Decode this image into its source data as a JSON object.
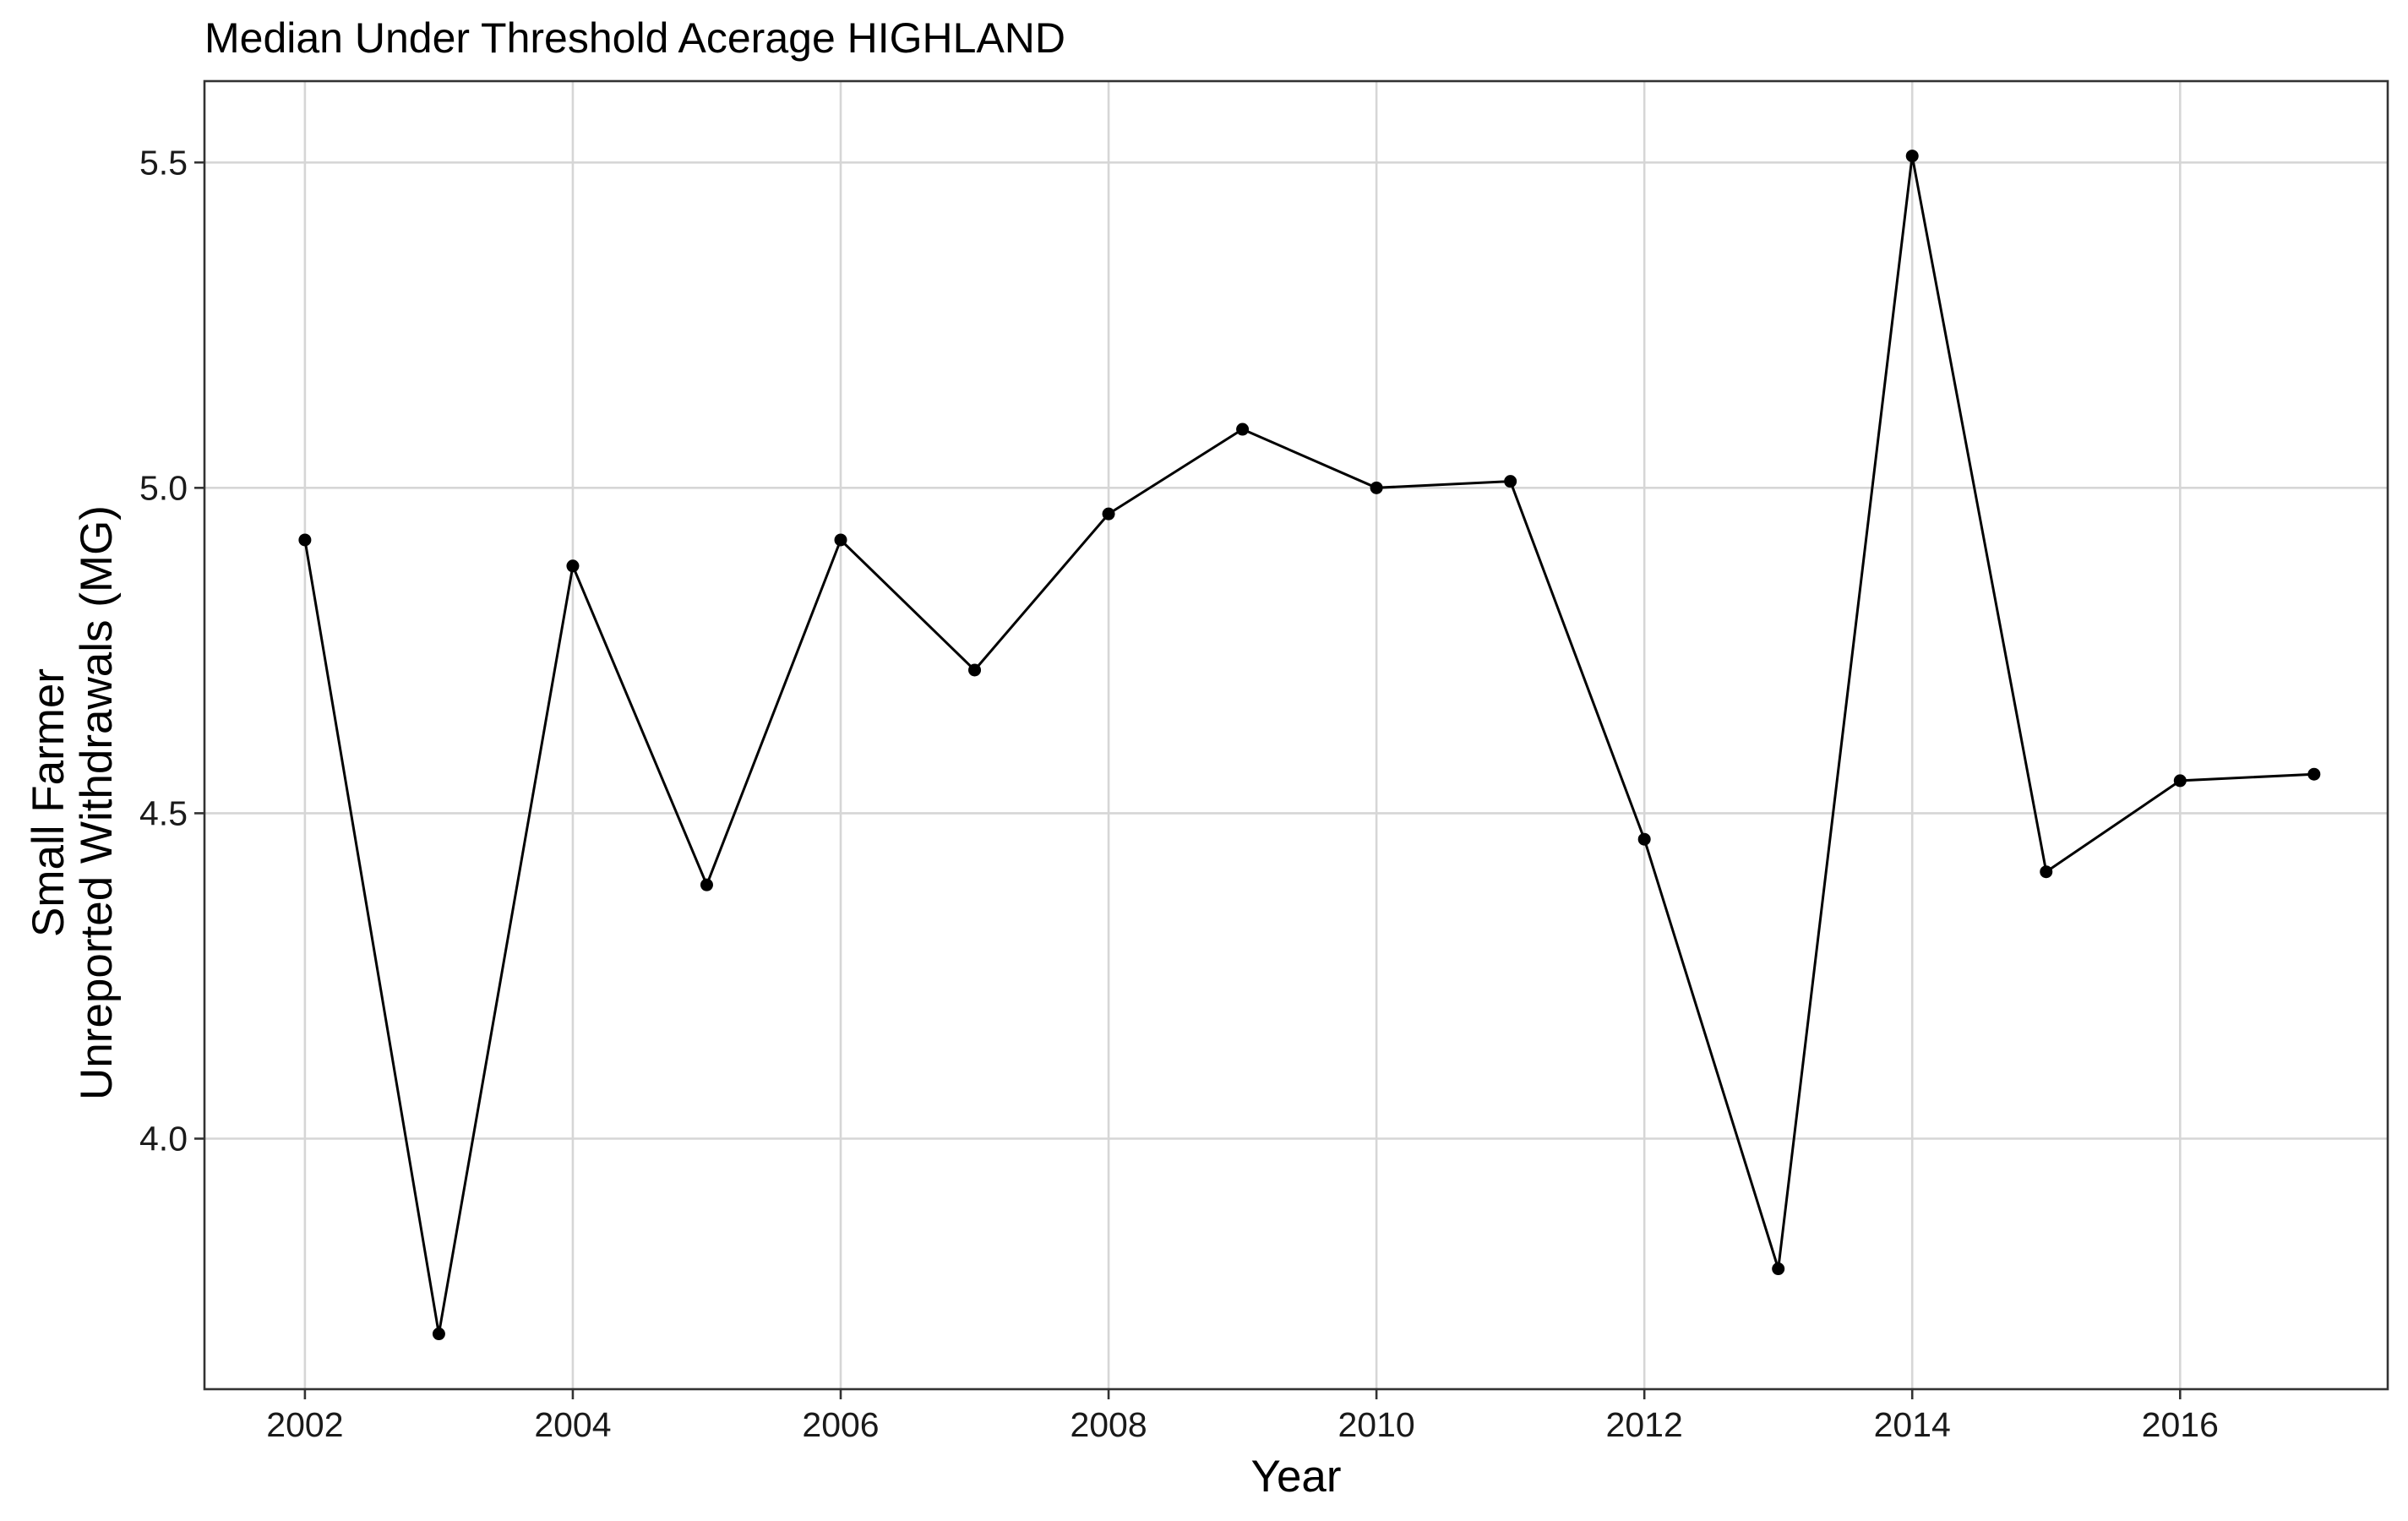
{
  "chart_data": {
    "type": "line",
    "title": "Median Under Threshold Acerage HIGHLAND",
    "xlabel": "Year",
    "ylabel_lines": [
      "Small Farmer",
      "Unreported Withdrawals (MG)"
    ],
    "x_ticks": [
      2002,
      2004,
      2006,
      2008,
      2010,
      2012,
      2014,
      2016
    ],
    "y_ticks": [
      4.0,
      4.5,
      5.0,
      5.5
    ],
    "y_tick_labels": [
      "4.0",
      "4.5",
      "5.0",
      "5.5"
    ],
    "xlim": [
      2001.25,
      2017.55
    ],
    "ylim": [
      3.615,
      5.625
    ],
    "grid": true,
    "series": [
      {
        "x": [
          2002.0,
          2003.0,
          2004.0,
          2005.0,
          2006.0,
          2007.0,
          2008.0,
          2009.0,
          2010.0,
          2011.0,
          2012.0,
          2013.0,
          2014.0,
          2015.0,
          2016.0,
          2017.0
        ],
        "values": [
          4.92,
          3.7,
          4.88,
          4.39,
          4.92,
          4.72,
          4.96,
          5.09,
          5.0,
          5.01,
          4.46,
          3.8,
          5.51,
          4.41,
          4.55,
          4.56
        ],
        "color": "#000000"
      }
    ]
  }
}
